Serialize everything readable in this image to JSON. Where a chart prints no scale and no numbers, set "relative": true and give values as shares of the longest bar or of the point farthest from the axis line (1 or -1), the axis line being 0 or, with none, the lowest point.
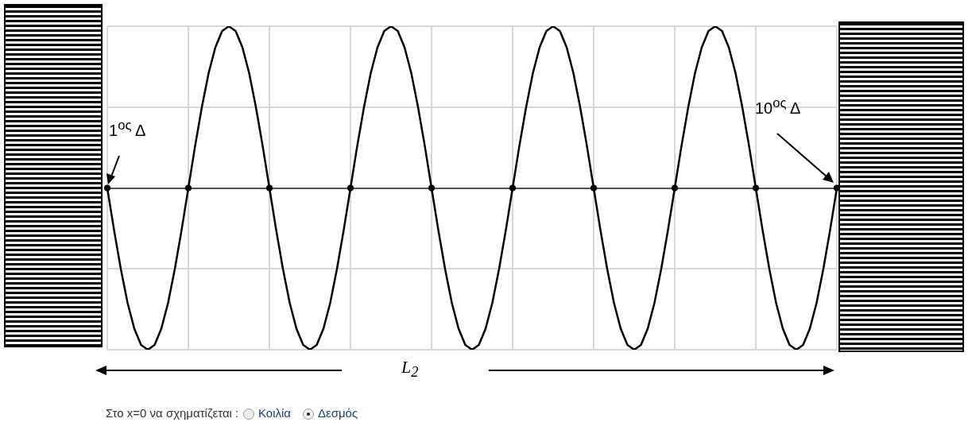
{
  "chart_data": {
    "type": "line",
    "relative": true,
    "tick_labels": false,
    "grid": true,
    "legend": false,
    "line_style": "solid",
    "categories": [
      null,
      null,
      null,
      null,
      null,
      null,
      null,
      null,
      null,
      null,
      null,
      null,
      null,
      null,
      null,
      null,
      null,
      null,
      null,
      null,
      null,
      null,
      null,
      null,
      null,
      null,
      null,
      null,
      null,
      null,
      null,
      null,
      null,
      null,
      null,
      null,
      null,
      null,
      null,
      null,
      null,
      null,
      null,
      null,
      null,
      null,
      null,
      null,
      null,
      null,
      null,
      null,
      null,
      null,
      null,
      null,
      null,
      null,
      null,
      null,
      null,
      null,
      null,
      null,
      null,
      null,
      null,
      null,
      null,
      null,
      null,
      null,
      null,
      null,
      null,
      null,
      null,
      null,
      null,
      null,
      null,
      null,
      null,
      null,
      null,
      null,
      null,
      null,
      null,
      null,
      null,
      null,
      null,
      null,
      null,
      null,
      null,
      null,
      null,
      null,
      null,
      null,
      null,
      null,
      null,
      null,
      null,
      null,
      null
    ],
    "series": [
      {
        "color": "#000000",
        "values": [
          0,
          -0.26,
          -0.5,
          -0.71,
          -0.87,
          -0.97,
          -1,
          -0.97,
          -0.87,
          -0.71,
          -0.5,
          -0.26,
          0,
          0.26,
          0.5,
          0.71,
          0.87,
          0.97,
          1,
          0.97,
          0.87,
          0.71,
          0.5,
          0.26,
          0,
          -0.26,
          -0.5,
          -0.71,
          -0.87,
          -0.97,
          -1,
          -0.97,
          -0.87,
          -0.71,
          -0.5,
          -0.26,
          0,
          0.26,
          0.5,
          0.71,
          0.87,
          0.97,
          1,
          0.97,
          0.87,
          0.71,
          0.5,
          0.26,
          0,
          -0.26,
          -0.5,
          -0.71,
          -0.87,
          -0.97,
          -1,
          -0.97,
          -0.87,
          -0.71,
          -0.5,
          -0.26,
          0,
          0.26,
          0.5,
          0.71,
          0.87,
          0.97,
          1,
          0.97,
          0.87,
          0.71,
          0.5,
          0.26,
          0,
          -0.26,
          -0.5,
          -0.71,
          -0.87,
          -0.97,
          -1,
          -0.97,
          -0.87,
          -0.71,
          -0.5,
          -0.26,
          0,
          0.26,
          0.5,
          0.71,
          0.87,
          0.97,
          1,
          0.97,
          0.87,
          0.71,
          0.5,
          0.26,
          0,
          -0.26,
          -0.5,
          -0.71,
          -0.87,
          -0.97,
          -1,
          -0.97,
          -0.87,
          -0.71,
          -0.5,
          -0.26,
          0
        ]
      }
    ],
    "annotations": [
      "1$^{ος}$ Δ",
      "10$^{ος}$ Δ",
      "L$_{2}$",
      "Στο x=0 να σχηματίζεται :",
      "Κοιλία",
      "Δεσμός"
    ]
  }
}
